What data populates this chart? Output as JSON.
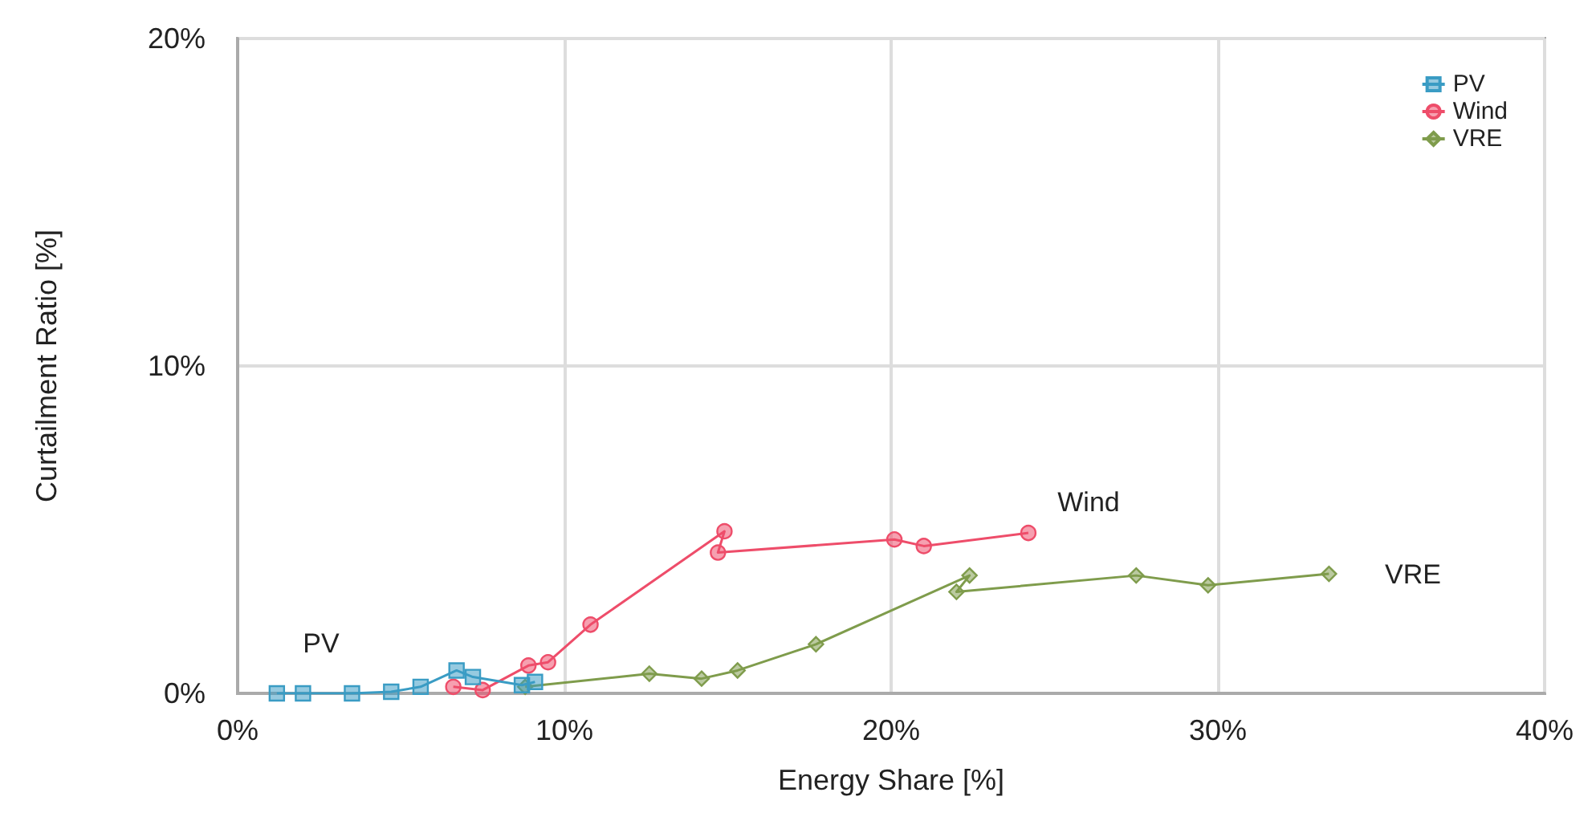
{
  "chart_data": {
    "type": "line",
    "xlabel": "Energy Share [%]",
    "ylabel": "Curtailment Ratio [%]",
    "xlim": [
      0,
      40
    ],
    "xticks": [
      {
        "value": 0,
        "label": "0%"
      },
      {
        "value": 10,
        "label": "10%"
      },
      {
        "value": 20,
        "label": "20%"
      },
      {
        "value": 30,
        "label": "30%"
      },
      {
        "value": 40,
        "label": "40%"
      }
    ],
    "ylim": [
      0,
      20
    ],
    "yticks": [
      {
        "value": 0,
        "label": "0%"
      },
      {
        "value": 10,
        "label": "10%"
      },
      {
        "value": 20,
        "label": "20%"
      }
    ],
    "grid": true,
    "legend": "top right",
    "line_style": "solid",
    "series": [
      {
        "name": "PV",
        "color": "#3a9cc4",
        "marker": "square",
        "x": [
          1.2,
          2.0,
          3.5,
          4.7,
          5.6,
          6.7,
          7.2,
          8.7,
          9.1
        ],
        "values": [
          0,
          0,
          0,
          0.05,
          0.2,
          0.7,
          0.5,
          0.25,
          0.35
        ]
      },
      {
        "name": "Wind",
        "color": "#ee4d6a",
        "marker": "circle",
        "x": [
          6.6,
          7.5,
          8.9,
          9.5,
          10.8,
          14.9,
          14.7,
          20.1,
          21.0,
          24.2
        ],
        "values": [
          0.2,
          0.1,
          0.85,
          0.95,
          2.1,
          4.95,
          4.3,
          4.7,
          4.5,
          4.9
        ]
      },
      {
        "name": "VRE",
        "color": "#7f9c4c",
        "marker": "diamond",
        "x": [
          8.8,
          12.6,
          14.2,
          15.3,
          17.7,
          22.4,
          22.0,
          27.5,
          29.7,
          33.4
        ],
        "values": [
          0.2,
          0.6,
          0.45,
          0.7,
          1.5,
          3.6,
          3.1,
          3.6,
          3.3,
          3.65
        ]
      }
    ],
    "annotations": [
      "PV",
      "Wind",
      "VRE"
    ]
  }
}
